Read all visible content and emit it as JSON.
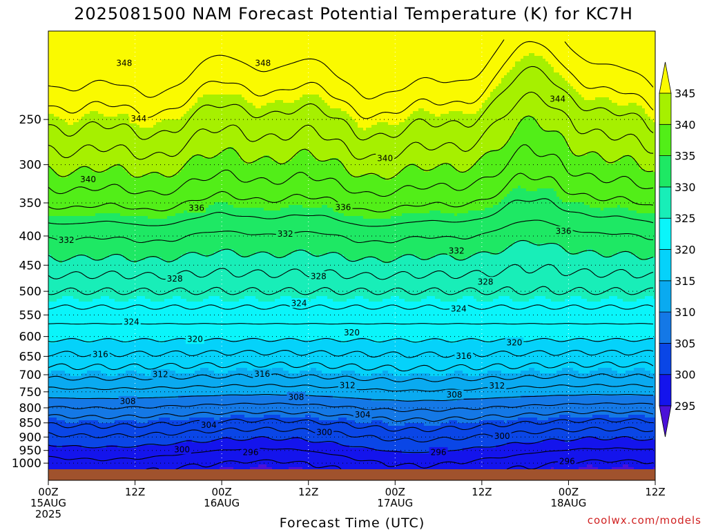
{
  "chart_data": {
    "type": "filled_contour",
    "title": "2025081500 NAM Forecast Potential Temperature (K) for KC7H",
    "xlabel": "Forecast Time (UTC)",
    "ylabel": "",
    "credit": "coolwx.com/models",
    "x_ticks": [
      {
        "hours": 0,
        "l1": "00Z",
        "l2": "15AUG",
        "l3": "2025"
      },
      {
        "hours": 12,
        "l1": "12Z",
        "l2": "",
        "l3": ""
      },
      {
        "hours": 24,
        "l1": "00Z",
        "l2": "16AUG",
        "l3": ""
      },
      {
        "hours": 36,
        "l1": "12Z",
        "l2": "",
        "l3": ""
      },
      {
        "hours": 48,
        "l1": "00Z",
        "l2": "17AUG",
        "l3": ""
      },
      {
        "hours": 60,
        "l1": "12Z",
        "l2": "",
        "l3": ""
      },
      {
        "hours": 72,
        "l1": "00Z",
        "l2": "18AUG",
        "l3": ""
      },
      {
        "hours": 84,
        "l1": "12Z",
        "l2": "",
        "l3": ""
      }
    ],
    "xlim": [
      0,
      84
    ],
    "y_ticks": [
      250,
      300,
      350,
      400,
      450,
      500,
      550,
      600,
      650,
      700,
      750,
      800,
      850,
      900,
      950,
      1000
    ],
    "ylim": [
      1025,
      175
    ],
    "y_scale": "log",
    "colorbar": {
      "ticks": [
        295,
        300,
        305,
        310,
        315,
        320,
        325,
        330,
        335,
        340,
        345
      ],
      "bands": [
        {
          "lo": 290,
          "hi": 295,
          "color": "#4b12d8"
        },
        {
          "lo": 295,
          "hi": 300,
          "color": "#1414ec"
        },
        {
          "lo": 300,
          "hi": 305,
          "color": "#0a46e6"
        },
        {
          "lo": 305,
          "hi": 310,
          "color": "#1478e6"
        },
        {
          "lo": 310,
          "hi": 315,
          "color": "#0aaaf0"
        },
        {
          "lo": 315,
          "hi": 320,
          "color": "#05d2fa"
        },
        {
          "lo": 320,
          "hi": 325,
          "color": "#0af5fa"
        },
        {
          "lo": 325,
          "hi": 330,
          "color": "#18eeb8"
        },
        {
          "lo": 330,
          "hi": 335,
          "color": "#1ee864"
        },
        {
          "lo": 335,
          "hi": 340,
          "color": "#52ee18"
        },
        {
          "lo": 340,
          "hi": 345,
          "color": "#a6f000"
        },
        {
          "lo": 345,
          "hi": 350,
          "color": "#fafa00"
        }
      ]
    },
    "contour_levels": [
      296,
      298,
      300,
      302,
      304,
      306,
      308,
      310,
      312,
      314,
      316,
      318,
      320,
      322,
      324,
      326,
      328,
      330,
      332,
      334,
      336,
      338,
      340,
      342,
      344,
      346,
      348
    ],
    "contour_labels": [
      {
        "value": 348,
        "hours": 10.5,
        "p": 199
      },
      {
        "value": 348,
        "hours": 29.7,
        "p": 199
      },
      {
        "value": 344,
        "hours": 12.5,
        "p": 249
      },
      {
        "value": 344,
        "hours": 70.5,
        "p": 230
      },
      {
        "value": 340,
        "hours": 5.5,
        "p": 318
      },
      {
        "value": 340,
        "hours": 46.6,
        "p": 292
      },
      {
        "value": 336,
        "hours": 20.5,
        "p": 357
      },
      {
        "value": 336,
        "hours": 40.8,
        "p": 356
      },
      {
        "value": 336,
        "hours": 71.3,
        "p": 392
      },
      {
        "value": 332,
        "hours": 2.5,
        "p": 406
      },
      {
        "value": 332,
        "hours": 32.8,
        "p": 396
      },
      {
        "value": 332,
        "hours": 56.5,
        "p": 424
      },
      {
        "value": 328,
        "hours": 17.5,
        "p": 475
      },
      {
        "value": 328,
        "hours": 37.4,
        "p": 470
      },
      {
        "value": 328,
        "hours": 60.5,
        "p": 481
      },
      {
        "value": 324,
        "hours": 11.5,
        "p": 565
      },
      {
        "value": 324,
        "hours": 34.7,
        "p": 524
      },
      {
        "value": 324,
        "hours": 56.8,
        "p": 536
      },
      {
        "value": 320,
        "hours": 20.3,
        "p": 606
      },
      {
        "value": 320,
        "hours": 42.0,
        "p": 590
      },
      {
        "value": 320,
        "hours": 64.5,
        "p": 614
      },
      {
        "value": 316,
        "hours": 7.2,
        "p": 644
      },
      {
        "value": 316,
        "hours": 29.6,
        "p": 697
      },
      {
        "value": 316,
        "hours": 57.5,
        "p": 648
      },
      {
        "value": 312,
        "hours": 15.5,
        "p": 698
      },
      {
        "value": 312,
        "hours": 41.4,
        "p": 730
      },
      {
        "value": 312,
        "hours": 62.1,
        "p": 731
      },
      {
        "value": 308,
        "hours": 11.0,
        "p": 778
      },
      {
        "value": 308,
        "hours": 34.3,
        "p": 765
      },
      {
        "value": 308,
        "hours": 56.2,
        "p": 758
      },
      {
        "value": 304,
        "hours": 22.2,
        "p": 857
      },
      {
        "value": 304,
        "hours": 43.5,
        "p": 822
      },
      {
        "value": 300,
        "hours": 38.2,
        "p": 882
      },
      {
        "value": 300,
        "hours": 62.8,
        "p": 895
      },
      {
        "value": 300,
        "hours": 18.5,
        "p": 946
      },
      {
        "value": 296,
        "hours": 28.0,
        "p": 956
      },
      {
        "value": 296,
        "hours": 54.0,
        "p": 956
      },
      {
        "value": 296,
        "hours": 71.8,
        "p": 992
      }
    ]
  }
}
